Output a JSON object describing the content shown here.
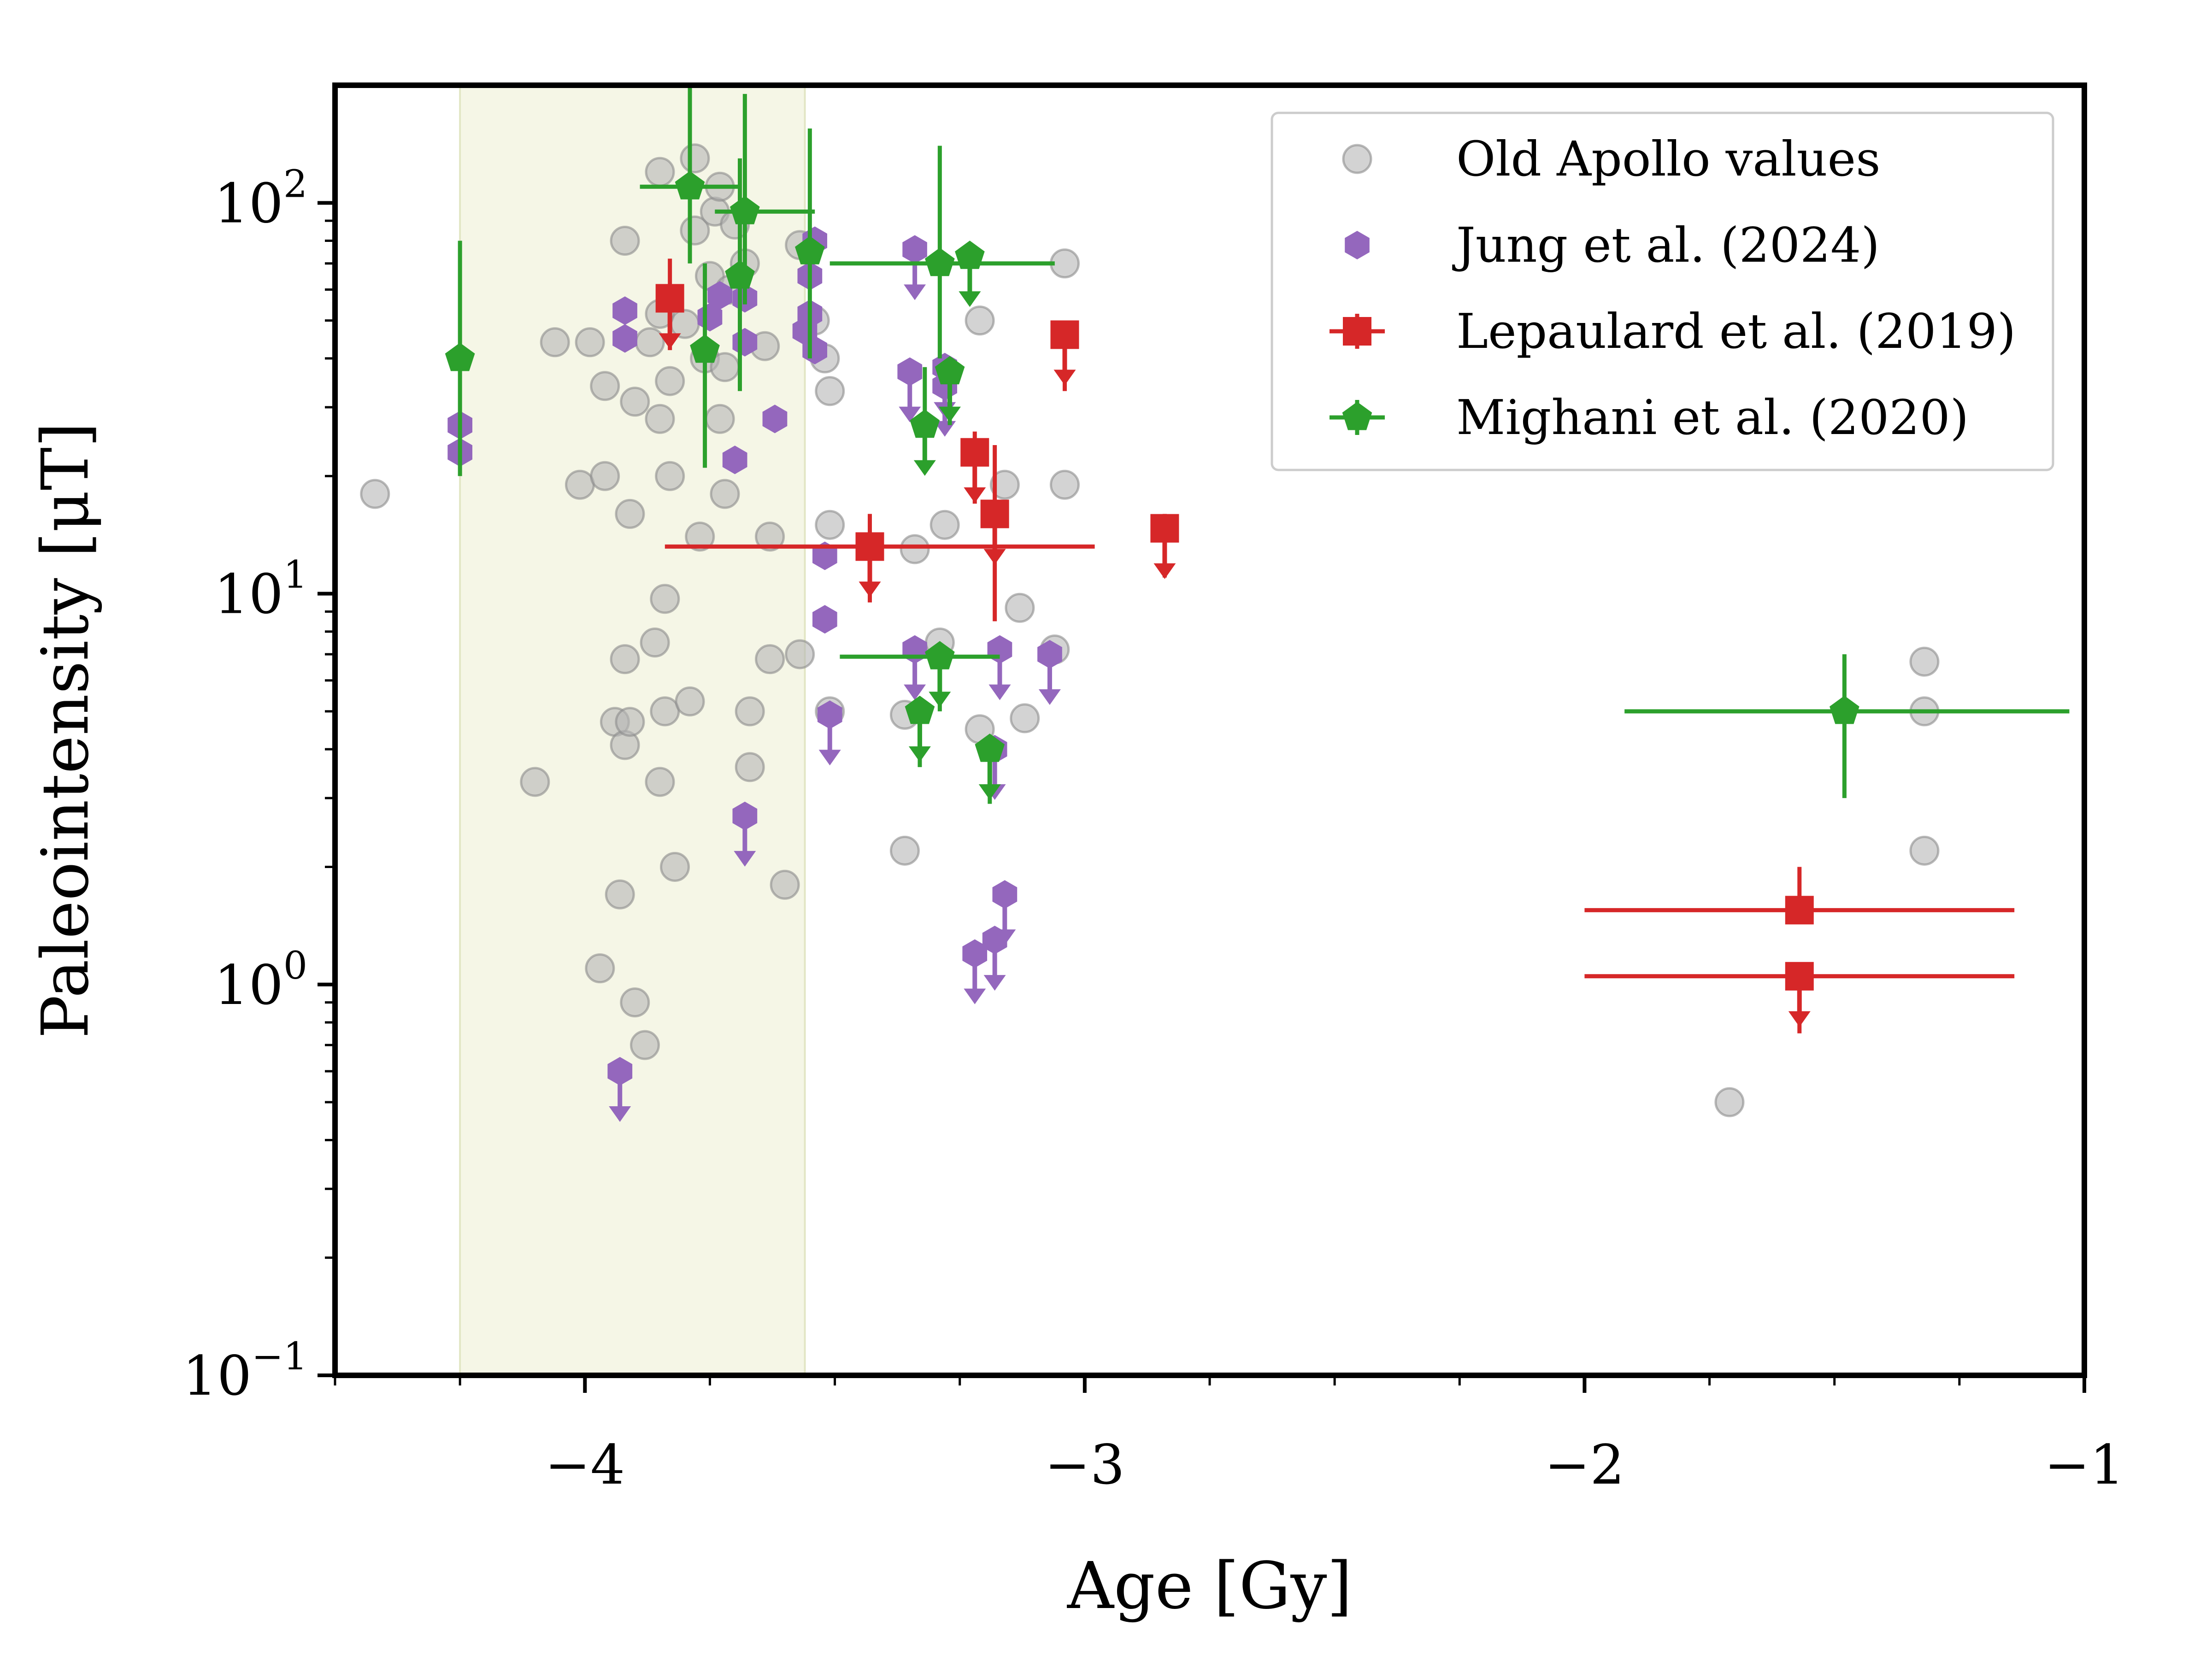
{
  "chart_data": {
    "type": "scatter",
    "title": "",
    "xlabel": "Age [Gy]",
    "ylabel": "Paleointensity [μT]",
    "xlim": [
      -4.5,
      -1.0
    ],
    "ylim": [
      0.1,
      200
    ],
    "yscale": "log",
    "x_ticks": [
      {
        "value": -4,
        "label": "−4"
      },
      {
        "value": -3,
        "label": "−3"
      },
      {
        "value": -2,
        "label": "−2"
      },
      {
        "value": -1,
        "label": "−1"
      }
    ],
    "y_ticks": [
      {
        "value": 0.1,
        "base": "10",
        "exp": "−1"
      },
      {
        "value": 1,
        "base": "10",
        "exp": "0"
      },
      {
        "value": 10,
        "base": "10",
        "exp": "1"
      },
      {
        "value": 100,
        "base": "10",
        "exp": "2"
      }
    ],
    "shaded_region": {
      "x": [
        -4.25,
        -3.56
      ],
      "color": "#f5f6e6"
    },
    "legend": {
      "position": "top-right",
      "entries": [
        {
          "label": "Old Apollo values",
          "series": "old_apollo"
        },
        {
          "label": "Jung et al. (2024)",
          "series": "jung"
        },
        {
          "label": "Lepaulard et al. (2019)",
          "series": "lepaulard"
        },
        {
          "label": "Mighani et al. (2020)",
          "series": "mighani"
        }
      ]
    },
    "series": [
      {
        "id": "old_apollo",
        "name": "Old Apollo values",
        "marker": "circle",
        "color": "#b5b5b5",
        "points": [
          {
            "x": -4.42,
            "y": 18
          },
          {
            "x": -4.1,
            "y": 3.3
          },
          {
            "x": -4.06,
            "y": 44
          },
          {
            "x": -4.01,
            "y": 19
          },
          {
            "x": -3.99,
            "y": 44
          },
          {
            "x": -3.97,
            "y": 1.1
          },
          {
            "x": -3.96,
            "y": 34
          },
          {
            "x": -3.96,
            "y": 20
          },
          {
            "x": -3.94,
            "y": 4.7
          },
          {
            "x": -3.93,
            "y": 1.7
          },
          {
            "x": -3.92,
            "y": 80
          },
          {
            "x": -3.92,
            "y": 6.8
          },
          {
            "x": -3.92,
            "y": 4.1
          },
          {
            "x": -3.91,
            "y": 16
          },
          {
            "x": -3.91,
            "y": 4.7
          },
          {
            "x": -3.9,
            "y": 0.9
          },
          {
            "x": -3.9,
            "y": 31
          },
          {
            "x": -3.88,
            "y": 0.7
          },
          {
            "x": -3.87,
            "y": 44
          },
          {
            "x": -3.86,
            "y": 7.5
          },
          {
            "x": -3.85,
            "y": 120
          },
          {
            "x": -3.85,
            "y": 52
          },
          {
            "x": -3.85,
            "y": 28
          },
          {
            "x": -3.85,
            "y": 3.3
          },
          {
            "x": -3.84,
            "y": 9.7
          },
          {
            "x": -3.84,
            "y": 5.0
          },
          {
            "x": -3.83,
            "y": 35
          },
          {
            "x": -3.83,
            "y": 20
          },
          {
            "x": -3.82,
            "y": 2.0
          },
          {
            "x": -3.8,
            "y": 49
          },
          {
            "x": -3.79,
            "y": 5.3
          },
          {
            "x": -3.78,
            "y": 130
          },
          {
            "x": -3.78,
            "y": 85
          },
          {
            "x": -3.77,
            "y": 14
          },
          {
            "x": -3.76,
            "y": 40
          },
          {
            "x": -3.75,
            "y": 65
          },
          {
            "x": -3.74,
            "y": 95
          },
          {
            "x": -3.73,
            "y": 110
          },
          {
            "x": -3.73,
            "y": 28
          },
          {
            "x": -3.72,
            "y": 38
          },
          {
            "x": -3.72,
            "y": 18
          },
          {
            "x": -3.71,
            "y": 60
          },
          {
            "x": -3.7,
            "y": 88
          },
          {
            "x": -3.68,
            "y": 70
          },
          {
            "x": -3.67,
            "y": 5.0
          },
          {
            "x": -3.67,
            "y": 3.6
          },
          {
            "x": -3.64,
            "y": 43
          },
          {
            "x": -3.63,
            "y": 14
          },
          {
            "x": -3.63,
            "y": 6.8
          },
          {
            "x": -3.6,
            "y": 1.8
          },
          {
            "x": -3.57,
            "y": 7.0
          },
          {
            "x": -3.57,
            "y": 78
          },
          {
            "x": -3.54,
            "y": 50
          },
          {
            "x": -3.52,
            "y": 40
          },
          {
            "x": -3.51,
            "y": 33
          },
          {
            "x": -3.51,
            "y": 15
          },
          {
            "x": -3.51,
            "y": 5.0
          },
          {
            "x": -3.36,
            "y": 2.2
          },
          {
            "x": -3.36,
            "y": 4.9
          },
          {
            "x": -3.34,
            "y": 13
          },
          {
            "x": -3.29,
            "y": 7.5
          },
          {
            "x": -3.28,
            "y": 15
          },
          {
            "x": -3.21,
            "y": 50
          },
          {
            "x": -3.21,
            "y": 4.5
          },
          {
            "x": -3.16,
            "y": 19
          },
          {
            "x": -3.13,
            "y": 9.2
          },
          {
            "x": -3.12,
            "y": 4.8
          },
          {
            "x": -3.06,
            "y": 7.2
          },
          {
            "x": -3.04,
            "y": 70
          },
          {
            "x": -3.04,
            "y": 19
          },
          {
            "x": -1.71,
            "y": 0.5
          },
          {
            "x": -1.32,
            "y": 6.7
          },
          {
            "x": -1.32,
            "y": 5.0
          },
          {
            "x": -1.32,
            "y": 2.2
          }
        ]
      },
      {
        "id": "jung",
        "name": "Jung et al. (2024)",
        "marker": "hexagon",
        "color": "#9467bd",
        "points": [
          {
            "x": -4.25,
            "y": 27
          },
          {
            "x": -4.25,
            "y": 23
          },
          {
            "x": -3.92,
            "y": 53
          },
          {
            "x": -3.92,
            "y": 45
          },
          {
            "x": -3.75,
            "y": 51
          },
          {
            "x": -3.73,
            "y": 58
          },
          {
            "x": -3.7,
            "y": 22
          },
          {
            "x": -3.68,
            "y": 57
          },
          {
            "x": -3.68,
            "y": 44
          },
          {
            "x": -3.62,
            "y": 28
          },
          {
            "x": -3.56,
            "y": 47
          },
          {
            "x": -3.55,
            "y": 65
          },
          {
            "x": -3.55,
            "y": 52
          },
          {
            "x": -3.54,
            "y": 80
          },
          {
            "x": -3.54,
            "y": 42
          },
          {
            "x": -3.52,
            "y": 12.5
          },
          {
            "x": -3.52,
            "y": 8.6
          },
          {
            "x": -3.93,
            "y": 0.6,
            "upper": true
          },
          {
            "x": -3.68,
            "y": 2.7,
            "upper": true
          },
          {
            "x": -3.51,
            "y": 4.9,
            "upper": true
          },
          {
            "x": -3.34,
            "y": 76,
            "upper": true
          },
          {
            "x": -3.35,
            "y": 37,
            "upper": true
          },
          {
            "x": -3.34,
            "y": 7.2,
            "upper": true
          },
          {
            "x": -3.28,
            "y": 38,
            "upper": true
          },
          {
            "x": -3.28,
            "y": 34,
            "upper": true
          },
          {
            "x": -3.22,
            "y": 1.2,
            "upper": true
          },
          {
            "x": -3.18,
            "y": 1.3,
            "upper": true
          },
          {
            "x": -3.18,
            "y": 4.0,
            "upper": true
          },
          {
            "x": -3.17,
            "y": 7.2,
            "upper": true
          },
          {
            "x": -3.16,
            "y": 1.7,
            "upper": true
          },
          {
            "x": -3.07,
            "y": 7.0,
            "upper": true
          }
        ]
      },
      {
        "id": "lepaulard",
        "name": "Lepaulard et al. (2019)",
        "marker": "square",
        "color": "#d62728",
        "points": [
          {
            "x": -3.83,
            "y": 57,
            "ylo": 42,
            "yhi": 72,
            "upper": true
          },
          {
            "x": -3.43,
            "y": 13.2,
            "xlo": -3.84,
            "xhi": -2.98,
            "ylo": 9.5,
            "yhi": 16,
            "upper": true
          },
          {
            "x": -3.22,
            "y": 23,
            "ylo": 17,
            "yhi": 26,
            "upper": true
          },
          {
            "x": -3.18,
            "y": 16,
            "ylo": 8.5,
            "yhi": 24,
            "upper": true
          },
          {
            "x": -3.04,
            "y": 46,
            "ylo": 33,
            "yhi": 46,
            "upper": true
          },
          {
            "x": -2.84,
            "y": 14.7,
            "ylo": 11,
            "yhi": 16,
            "upper": true
          },
          {
            "x": -1.57,
            "y": 1.55,
            "xlo": -2.0,
            "xhi": -1.14,
            "ylo": 1.55,
            "yhi": 2.0
          },
          {
            "x": -1.57,
            "y": 1.05,
            "xlo": -2.0,
            "xhi": -1.14,
            "ylo": 0.75,
            "yhi": 1.05,
            "upper": true
          }
        ]
      },
      {
        "id": "mighani",
        "name": "Mighani et al. (2020)",
        "marker": "pentagon",
        "color": "#2ca02c",
        "points": [
          {
            "x": -4.25,
            "y": 40,
            "ylo": 20,
            "yhi": 80
          },
          {
            "x": -3.79,
            "y": 110,
            "xlo": -3.89,
            "xhi": -3.69,
            "ylo": 70,
            "yhi": 200
          },
          {
            "x": -3.76,
            "y": 42,
            "ylo": 21,
            "yhi": 70
          },
          {
            "x": -3.69,
            "y": 65,
            "ylo": 33,
            "yhi": 130
          },
          {
            "x": -3.68,
            "y": 95,
            "xlo": -3.74,
            "xhi": -3.54,
            "ylo": 55,
            "yhi": 190
          },
          {
            "x": -3.55,
            "y": 75,
            "ylo": 40,
            "yhi": 155
          },
          {
            "x": -3.29,
            "y": 70,
            "xlo": -3.51,
            "xhi": -3.06,
            "ylo": 40,
            "yhi": 140
          },
          {
            "x": -3.23,
            "y": 73,
            "ylo": 55,
            "yhi": 73,
            "upper": true
          },
          {
            "x": -3.32,
            "y": 27,
            "ylo": 27,
            "yhi": 38,
            "upper": true
          },
          {
            "x": -3.27,
            "y": 37,
            "ylo": 27,
            "yhi": 37,
            "upper": true
          },
          {
            "x": -3.29,
            "y": 6.9,
            "xlo": -3.49,
            "xhi": -3.17,
            "ylo": 5.0,
            "yhi": 6.9,
            "upper": true
          },
          {
            "x": -3.33,
            "y": 5.0,
            "ylo": 3.6,
            "yhi": 5.0,
            "upper": true
          },
          {
            "x": -3.19,
            "y": 4.0,
            "ylo": 2.9,
            "yhi": 4.0,
            "upper": true
          },
          {
            "x": -1.48,
            "y": 5.0,
            "xlo": -1.92,
            "xhi": -1.03,
            "ylo": 3.0,
            "yhi": 7.0
          }
        ]
      }
    ]
  }
}
